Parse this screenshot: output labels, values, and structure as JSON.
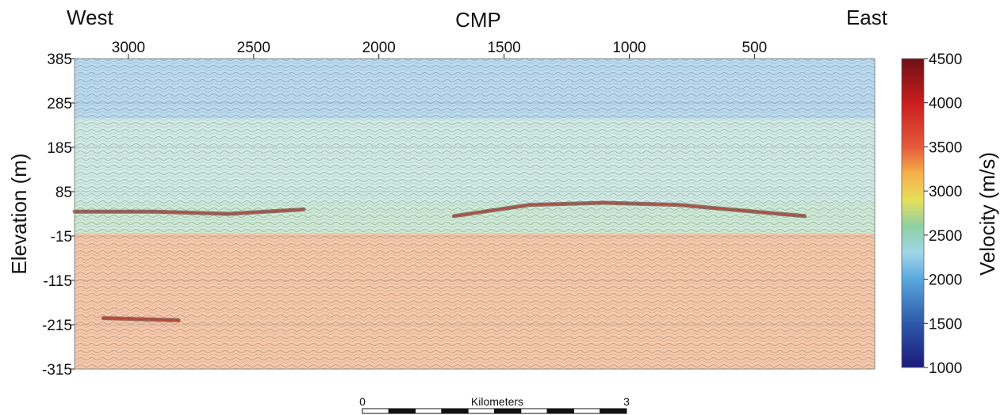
{
  "chart_data": {
    "type": "heatmap",
    "title": "CMP",
    "left_label": "West",
    "right_label": "East",
    "xlabel": "CMP",
    "ylabel": "Elevation (m)",
    "x_ticks": [
      3000,
      2500,
      2000,
      1500,
      1000,
      500
    ],
    "x_range": [
      3215,
      20
    ],
    "y_ticks": [
      385,
      285,
      185,
      85,
      -15,
      -115,
      -215,
      -315
    ],
    "ylim": [
      -315,
      385
    ],
    "colorbar": {
      "label": "Velocity (m/s)",
      "ticks": [
        4500,
        4000,
        3500,
        3000,
        2500,
        2000,
        1500,
        1000
      ],
      "range": [
        1000,
        4500
      ],
      "stops": [
        {
          "v": 1000,
          "c": "#1a1a7a"
        },
        {
          "v": 1500,
          "c": "#2d58a8"
        },
        {
          "v": 2000,
          "c": "#5aa7de"
        },
        {
          "v": 2300,
          "c": "#9fd6e8"
        },
        {
          "v": 2600,
          "c": "#8fd0a4"
        },
        {
          "v": 2900,
          "c": "#e6e05a"
        },
        {
          "v": 3200,
          "c": "#f6b04c"
        },
        {
          "v": 3500,
          "c": "#e55a3a"
        },
        {
          "v": 4000,
          "c": "#c81e1e"
        },
        {
          "v": 4500,
          "c": "#6e1016"
        }
      ]
    },
    "velocity_bands": [
      {
        "elev_top": 385,
        "elev_bottom": 250,
        "velocity": 2050
      },
      {
        "elev_top": 250,
        "elev_bottom": 60,
        "velocity": 2450
      },
      {
        "elev_top": 60,
        "elev_bottom": -10,
        "velocity": 2600
      },
      {
        "elev_top": -10,
        "elev_bottom": -315,
        "velocity": 3350
      }
    ],
    "reflectors": [
      {
        "name": "",
        "cmp": [
          3215,
          2900,
          2600,
          2300
        ],
        "elev": [
          40,
          40,
          35,
          45
        ]
      },
      {
        "name": "",
        "cmp": [
          1700,
          1400,
          1100,
          800,
          500,
          300
        ],
        "elev": [
          30,
          55,
          60,
          55,
          40,
          30
        ]
      },
      {
        "name": "",
        "cmp": [
          3100,
          2800
        ],
        "elev": [
          -200,
          -205
        ]
      }
    ],
    "scale_bar": {
      "label": "Kilometers",
      "start": "0",
      "end": "3"
    }
  }
}
